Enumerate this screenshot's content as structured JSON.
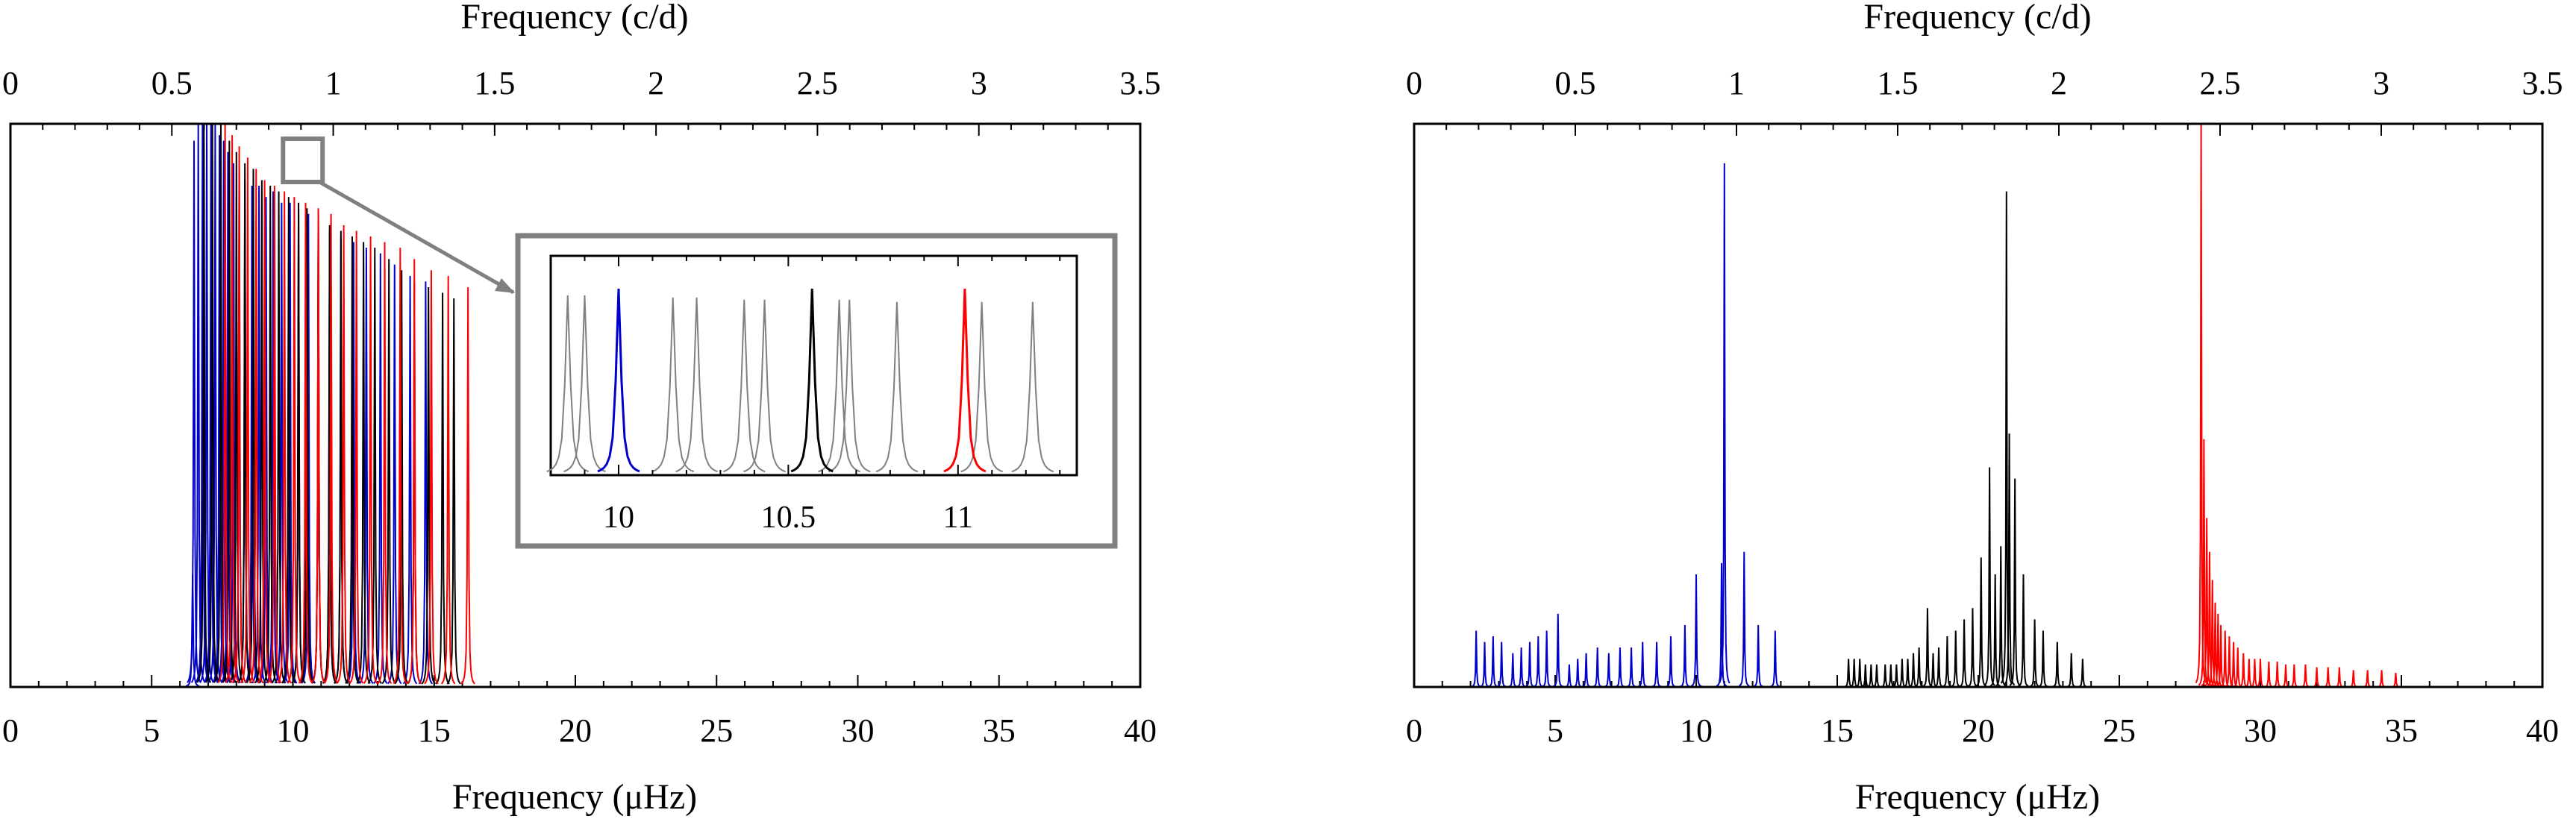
{
  "chart_data": [
    {
      "type": "line",
      "title": "",
      "xlabel": "Frequency (μHz)",
      "xlabel_top": "Frequency (c/d)",
      "ylabel": "",
      "xlim": [
        0,
        40
      ],
      "xlim_top": [
        0,
        3.5
      ],
      "bottom_ticks": [
        "0",
        "5",
        "10",
        "15",
        "20",
        "25",
        "30",
        "35",
        "40"
      ],
      "top_ticks": [
        "0",
        "0.5",
        "1",
        "1.5",
        "2",
        "2.5",
        "3",
        "3.5"
      ],
      "grid": false,
      "colors": {
        "series_a": "#0000cc",
        "series_b": "#000000",
        "series_c": "#ff0000",
        "inset_other": "#808080"
      },
      "series": [
        {
          "color": "#0000cc",
          "x": [
            6.45,
            6.5,
            6.65,
            6.8,
            6.95,
            7.1,
            7.25,
            7.4,
            7.55,
            7.7,
            7.9,
            8.1,
            8.3,
            8.55,
            8.8,
            9.05,
            9.3,
            9.6,
            9.9,
            10.2,
            10.55,
            10.9,
            11.3,
            11.7,
            12.15,
            12.6,
            13.1,
            13.6,
            14.15,
            14.7
          ],
          "y": [
            0.2,
            0.97,
            1,
            1,
            1,
            1,
            1,
            0.98,
            0.97,
            0.95,
            0.93,
            0.92,
            0.9,
            0.89,
            0.89,
            0.87,
            0.88,
            0.86,
            0.86,
            0.85,
            0.84,
            0.82,
            0.81,
            0.8,
            0.79,
            0.78,
            0.77,
            0.75,
            0.73,
            0.72
          ]
        },
        {
          "color": "#000000",
          "x": [
            6.85,
            7.15,
            7.45,
            7.75,
            8.0,
            8.3,
            8.6,
            8.9,
            9.2,
            9.5,
            9.85,
            10.2,
            10.5,
            10.9,
            11.3,
            11.7,
            12.1,
            12.5,
            12.9,
            13.4,
            13.85,
            14.3,
            14.8,
            15.3,
            15.7
          ],
          "y": [
            1,
            1,
            1,
            0.97,
            0.95,
            0.93,
            0.92,
            0.9,
            0.89,
            0.88,
            0.87,
            0.86,
            0.85,
            0.84,
            0.82,
            0.81,
            0.8,
            0.79,
            0.78,
            0.76,
            0.74,
            0.72,
            0.71,
            0.7,
            0.69
          ]
        },
        {
          "color": "#ff0000",
          "x": [
            7.6,
            7.85,
            8.1,
            8.4,
            8.7,
            9.0,
            9.35,
            9.7,
            10.05,
            10.45,
            10.9,
            11.35,
            11.8,
            12.25,
            12.75,
            13.25,
            13.8,
            14.3,
            14.9,
            15.5,
            16.2
          ],
          "y": [
            1,
            0.98,
            0.96,
            0.94,
            0.92,
            0.9,
            0.89,
            0.88,
            0.87,
            0.86,
            0.85,
            0.84,
            0.82,
            0.81,
            0.8,
            0.79,
            0.78,
            0.76,
            0.74,
            0.73,
            0.71
          ]
        }
      ],
      "inset": {
        "xlim": [
          9.8,
          11.35
        ],
        "ticks": [
          "10",
          "10.5",
          "11"
        ],
        "zoom_box_x": [
          9.65,
          11.05
        ],
        "other_x": [
          9.85,
          9.9,
          10.16,
          10.23,
          10.37,
          10.43,
          10.65,
          10.68,
          10.82,
          11.07,
          11.22
        ],
        "other_y": [
          0.82,
          0.82,
          0.81,
          0.81,
          0.8,
          0.8,
          0.8,
          0.8,
          0.79,
          0.79,
          0.79
        ],
        "highlight": [
          {
            "color": "#0000cc",
            "x": 10.0,
            "y": 0.85
          },
          {
            "color": "#000000",
            "x": 10.57,
            "y": 0.85
          },
          {
            "color": "#ff0000",
            "x": 11.02,
            "y": 0.85
          }
        ]
      }
    },
    {
      "type": "line",
      "title": "",
      "xlabel": "Frequency (μHz)",
      "xlabel_top": "Frequency (c/d)",
      "ylabel": "",
      "xlim": [
        0,
        40
      ],
      "xlim_top": [
        0,
        3.5
      ],
      "bottom_ticks": [
        "0",
        "5",
        "10",
        "15",
        "20",
        "25",
        "30",
        "35",
        "40"
      ],
      "top_ticks": [
        "0",
        "0.5",
        "1",
        "1.5",
        "2",
        "2.5",
        "3",
        "3.5"
      ],
      "grid": false,
      "series": [
        {
          "color": "#0000cc",
          "x": [
            2.2,
            2.5,
            2.8,
            3.1,
            3.5,
            3.8,
            4.1,
            4.4,
            4.7,
            5.1,
            5.5,
            5.8,
            6.1,
            6.5,
            6.9,
            7.3,
            7.7,
            8.1,
            8.6,
            9.1,
            9.6,
            10.0,
            10.9,
            11.0,
            11.7,
            12.2,
            12.8
          ],
          "y": [
            0.1,
            0.08,
            0.09,
            0.08,
            0.06,
            0.07,
            0.08,
            0.09,
            0.1,
            0.13,
            0.04,
            0.05,
            0.06,
            0.07,
            0.06,
            0.07,
            0.07,
            0.08,
            0.08,
            0.09,
            0.11,
            0.2,
            0.22,
            0.93,
            0.24,
            0.11,
            0.1
          ]
        },
        {
          "color": "#000000",
          "x": [
            15.4,
            15.6,
            15.8,
            16.0,
            16.2,
            16.4,
            16.7,
            16.9,
            17.1,
            17.3,
            17.5,
            17.7,
            17.9,
            18.2,
            18.4,
            18.6,
            18.9,
            19.2,
            19.5,
            19.8,
            20.1,
            20.4,
            20.6,
            20.8,
            21.0,
            21.1,
            21.3,
            21.6,
            22.0,
            22.3,
            22.8,
            23.3,
            23.7
          ],
          "y": [
            0.05,
            0.05,
            0.05,
            0.04,
            0.04,
            0.04,
            0.04,
            0.04,
            0.04,
            0.05,
            0.05,
            0.06,
            0.07,
            0.14,
            0.06,
            0.07,
            0.09,
            0.1,
            0.12,
            0.14,
            0.23,
            0.39,
            0.2,
            0.25,
            0.88,
            0.45,
            0.37,
            0.2,
            0.12,
            0.1,
            0.08,
            0.06,
            0.05
          ]
        },
        {
          "color": "#ff0000",
          "x": [
            27.9,
            28.0,
            28.1,
            28.2,
            28.3,
            28.4,
            28.5,
            28.6,
            28.75,
            28.9,
            29.05,
            29.2,
            29.4,
            29.6,
            29.8,
            30.0,
            30.3,
            30.6,
            30.9,
            31.2,
            31.6,
            32.0,
            32.4,
            32.8,
            33.3,
            33.8,
            34.3,
            34.8
          ],
          "y": [
            1.0,
            0.44,
            0.3,
            0.24,
            0.19,
            0.15,
            0.13,
            0.11,
            0.1,
            0.09,
            0.08,
            0.07,
            0.06,
            0.05,
            0.05,
            0.05,
            0.045,
            0.045,
            0.04,
            0.04,
            0.04,
            0.035,
            0.035,
            0.035,
            0.03,
            0.03,
            0.03,
            0.025
          ]
        }
      ]
    }
  ]
}
